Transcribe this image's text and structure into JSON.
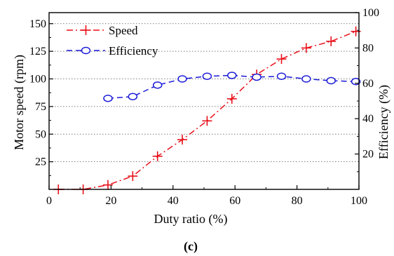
{
  "chart_data": {
    "type": "line",
    "title": "",
    "xlabel": "Duty ratio (%)",
    "ylabel": "Motor speed (rpm)",
    "y2label": "Efficiency (%)",
    "xlim": [
      0,
      100
    ],
    "ylim": [
      0,
      160
    ],
    "y2lim": [
      0,
      100
    ],
    "xticks": [
      0,
      20,
      40,
      60,
      80,
      100
    ],
    "yticks": [
      25,
      50,
      75,
      100,
      125,
      150
    ],
    "y2ticks": [
      20,
      40,
      60,
      80,
      100
    ],
    "grid": "horizontal dotted",
    "legend_position": "top-left",
    "series": [
      {
        "name": "Speed",
        "axis": "left",
        "color": "#e8101a",
        "marker": "plus",
        "line": "dash-dot",
        "x": [
          3,
          11,
          19,
          27,
          35,
          43,
          51,
          59,
          67,
          75,
          83,
          91,
          99
        ],
        "y": [
          0,
          0,
          4,
          12,
          30,
          45,
          62,
          82,
          104,
          118,
          128,
          134,
          143
        ]
      },
      {
        "name": "Efficiency",
        "axis": "right",
        "color": "#1a1ad8",
        "marker": "circle",
        "line": "dashed",
        "x": [
          19,
          27,
          35,
          43,
          51,
          59,
          67,
          75,
          83,
          91,
          99
        ],
        "y": [
          51.5,
          52.5,
          59,
          62.5,
          64,
          64.5,
          63.5,
          64,
          62.5,
          61.5,
          61
        ]
      }
    ]
  },
  "caption": "(c)"
}
